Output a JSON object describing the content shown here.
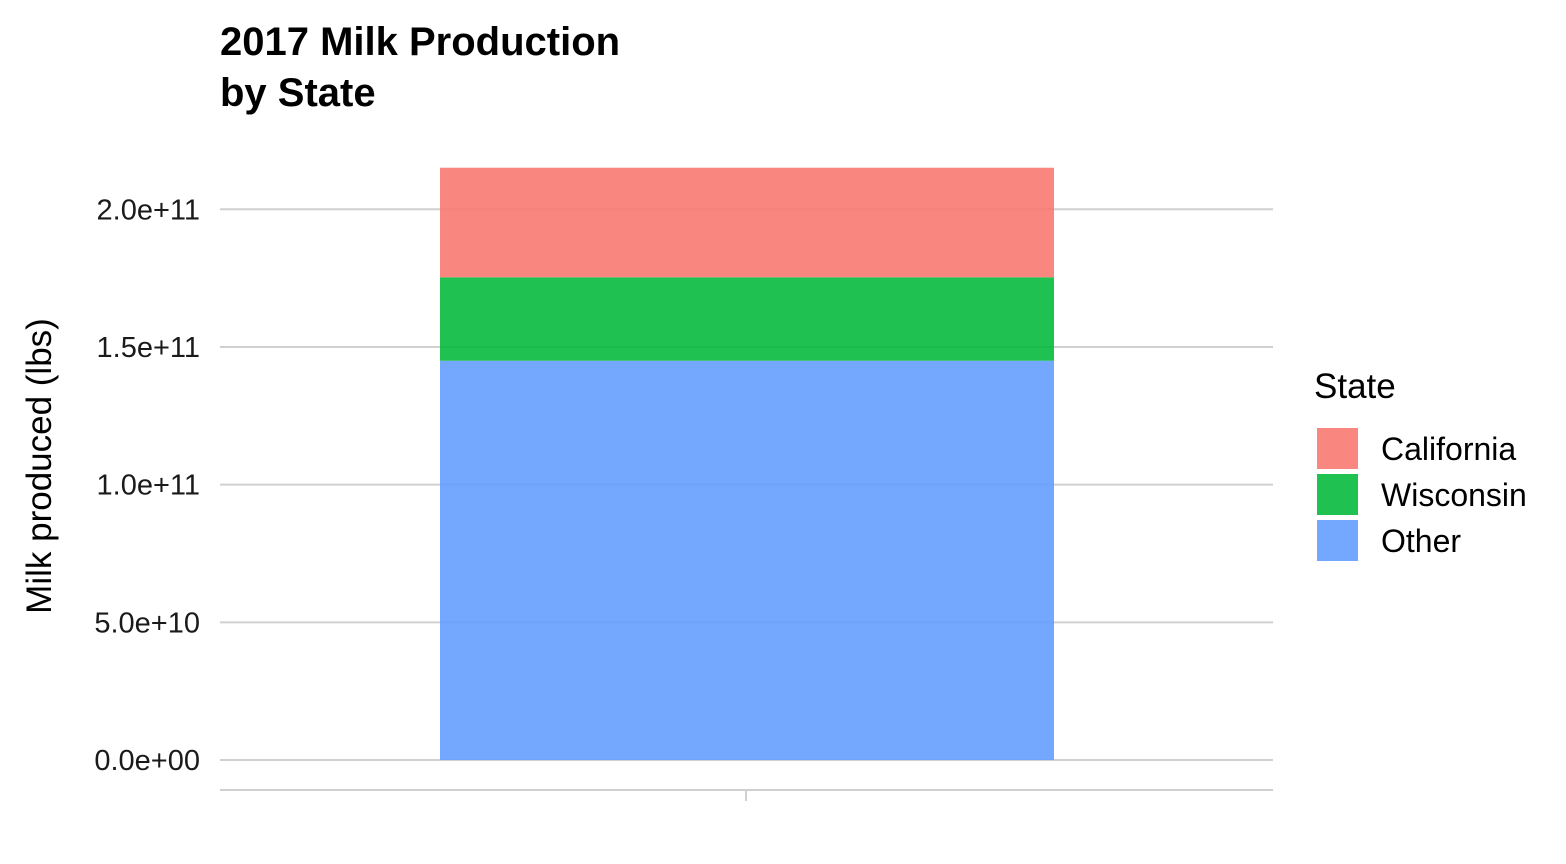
{
  "chart_data": {
    "type": "bar",
    "stacked": true,
    "title": "2017 Milk Production\nby State",
    "title_lines": [
      "2017 Milk Production",
      "by State"
    ],
    "xlabel": "",
    "ylabel": "Milk produced (lbs)",
    "categories": [
      ""
    ],
    "ylim": [
      0,
      215000000000
    ],
    "y_ticks": [
      0,
      50000000000,
      100000000000,
      150000000000,
      200000000000
    ],
    "y_tick_labels": [
      "0.0e+00",
      "5.0e+10",
      "1.0e+11",
      "1.5e+11",
      "2.0e+11"
    ],
    "grid": true,
    "legend": {
      "title": "State",
      "position": "right"
    },
    "series": [
      {
        "name": "Other",
        "values": [
          145000000000
        ],
        "color": "#619CFF"
      },
      {
        "name": "Wisconsin",
        "values": [
          30300000000
        ],
        "color": "#00BA38"
      },
      {
        "name": "California",
        "values": [
          39800000000
        ],
        "color": "#F8766D"
      }
    ],
    "legend_order": [
      "California",
      "Wisconsin",
      "Other"
    ]
  }
}
